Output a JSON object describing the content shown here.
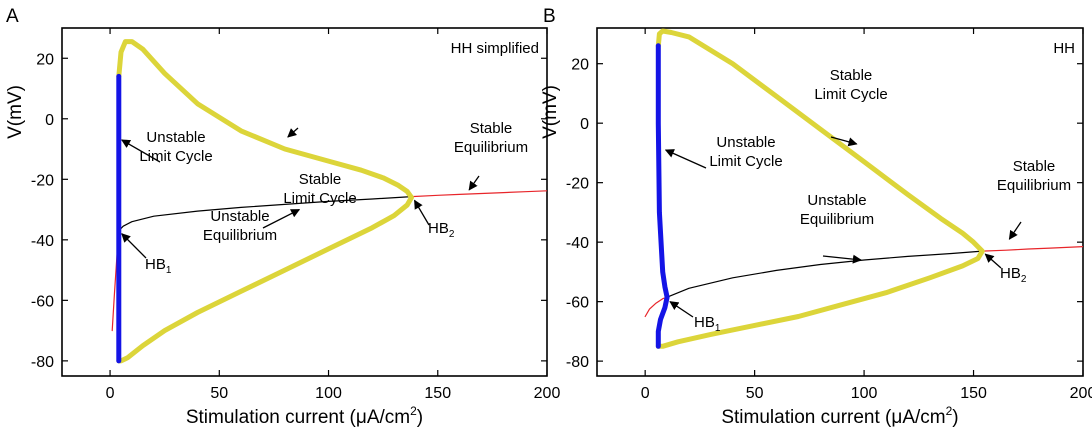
{
  "chart_data": [
    {
      "panel_label": "A",
      "type": "line",
      "model_label": "HH simplified",
      "xlabel_prefix": "Stimulation current (",
      "xlabel_unit": "μA/cm",
      "xlabel_sup": "2",
      "xlabel_suffix": ")",
      "ylabel": "V(mV)",
      "xlim": [
        -22,
        200
      ],
      "ylim": [
        -85,
        30
      ],
      "xticks": [
        0,
        50,
        100,
        150,
        200
      ],
      "yticks": [
        -80,
        -60,
        -40,
        -20,
        0,
        20
      ],
      "grid": false,
      "series": [
        {
          "key": "unstable_eq",
          "color": "#000000",
          "width": 1.2,
          "x": [
            4,
            6,
            10,
            20,
            40,
            60,
            80,
            100,
            120,
            138
          ],
          "y": [
            -37,
            -35.5,
            -34,
            -32.2,
            -30.5,
            -29.3,
            -28.3,
            -27.3,
            -26.5,
            -25.7
          ]
        },
        {
          "key": "stable_eq_low",
          "color": "#e8252a",
          "width": 1.2,
          "x": [
            1,
            2,
            3,
            4
          ],
          "y": [
            -70,
            -58,
            -47,
            -37
          ]
        },
        {
          "key": "stable_eq_high",
          "color": "#e8252a",
          "width": 1.2,
          "x": [
            138,
            150,
            160,
            170,
            180,
            190,
            200
          ],
          "y": [
            -25.7,
            -25.3,
            -25,
            -24.7,
            -24.4,
            -24.1,
            -23.8
          ]
        },
        {
          "key": "stable_lc",
          "color": "#dcd53a",
          "width": 5,
          "x": [
            4,
            5,
            7,
            10,
            15,
            25,
            40,
            60,
            80,
            100,
            115,
            125,
            132,
            136,
            138,
            136,
            130,
            120,
            100,
            80,
            60,
            40,
            25,
            15,
            8,
            5,
            4
          ],
          "y": [
            14,
            22,
            25.5,
            25.5,
            23,
            15,
            5,
            -4,
            -10,
            -14,
            -17,
            -19.5,
            -22,
            -24,
            -26,
            -28.5,
            -32,
            -36,
            -43,
            -50,
            -57,
            -64,
            -70,
            -75,
            -79,
            -80,
            -80
          ]
        },
        {
          "key": "unstable_lc",
          "color": "#1414e6",
          "width": 5,
          "x": [
            4,
            4,
            4
          ],
          "y": [
            14,
            -37,
            -80
          ]
        }
      ],
      "annotations": [
        {
          "lines": [
            "Stable",
            "Limit Cycle"
          ],
          "sub": "",
          "point": [
            80,
            -7
          ]
        },
        {
          "lines": [
            "Stable",
            "Equilibrium"
          ],
          "sub": "",
          "point": [
            163,
            -24.5
          ]
        },
        {
          "lines": [
            "Unstable",
            "Limit Cycle"
          ],
          "sub": "",
          "point": [
            4,
            -6
          ]
        },
        {
          "lines": [
            "Unstable",
            "Equilibrium"
          ],
          "sub": "",
          "point": [
            88,
            -29
          ]
        },
        {
          "lines": [
            "HB"
          ],
          "sub": "1",
          "point": [
            4,
            -37
          ]
        },
        {
          "lines": [
            "HB"
          ],
          "sub": "2",
          "point": [
            138,
            -26
          ]
        }
      ]
    },
    {
      "panel_label": "B",
      "type": "line",
      "model_label": "HH",
      "xlabel_prefix": "Stimulation current (",
      "xlabel_unit": "μA/cm",
      "xlabel_sup": "2",
      "xlabel_suffix": ")",
      "ylabel": "V(mV)",
      "xlim": [
        -22,
        200
      ],
      "ylim": [
        -85,
        32
      ],
      "xticks": [
        0,
        50,
        100,
        150,
        200
      ],
      "yticks": [
        -80,
        -60,
        -40,
        -20,
        0,
        20
      ],
      "grid": false,
      "series": [
        {
          "key": "unstable_eq",
          "color": "#000000",
          "width": 1.2,
          "x": [
            10,
            20,
            40,
            60,
            80,
            100,
            120,
            140,
            154
          ],
          "y": [
            -58.5,
            -55.5,
            -52,
            -49.5,
            -47.5,
            -46,
            -44.8,
            -43.8,
            -43
          ]
        },
        {
          "key": "stable_eq_low",
          "color": "#e8252a",
          "width": 1.2,
          "x": [
            0,
            2,
            5,
            8,
            10
          ],
          "y": [
            -65,
            -62.5,
            -60.5,
            -59,
            -58.5
          ]
        },
        {
          "key": "stable_eq_high",
          "color": "#e8252a",
          "width": 1.2,
          "x": [
            154,
            165,
            175,
            185,
            200
          ],
          "y": [
            -43,
            -42.7,
            -42.3,
            -42,
            -41.5
          ]
        },
        {
          "key": "stable_lc",
          "color": "#dcd53a",
          "width": 5,
          "x": [
            6,
            6.5,
            8,
            12,
            20,
            40,
            60,
            80,
            100,
            120,
            135,
            145,
            150,
            154,
            152,
            145,
            130,
            110,
            90,
            70,
            50,
            30,
            15,
            8,
            6
          ],
          "y": [
            26,
            30,
            31,
            30.5,
            29,
            20,
            9,
            -2,
            -13,
            -24,
            -32,
            -37,
            -40,
            -43,
            -45.5,
            -48,
            -52,
            -57,
            -61,
            -65,
            -68,
            -71,
            -73.5,
            -75,
            -75
          ]
        },
        {
          "key": "unstable_lc",
          "color": "#1414e6",
          "width": 5,
          "x": [
            6,
            6,
            6.5,
            8,
            9,
            10,
            9,
            7,
            6,
            6
          ],
          "y": [
            26,
            0,
            -30,
            -50,
            -55,
            -58.5,
            -62,
            -66,
            -70,
            -75
          ]
        }
      ],
      "annotations": [
        {
          "lines": [
            "Stable",
            "Limit Cycle"
          ],
          "sub": "",
          "point": [
            98,
            -8
          ]
        },
        {
          "lines": [
            "Stable",
            "Equilibrium"
          ],
          "sub": "",
          "point": [
            165,
            -40
          ]
        },
        {
          "lines": [
            "Unstable",
            "Limit Cycle"
          ],
          "sub": "",
          "point": [
            8,
            -8
          ]
        },
        {
          "lines": [
            "Unstable",
            "Equilibrium"
          ],
          "sub": "",
          "point": [
            100,
            -47
          ]
        },
        {
          "lines": [
            "HB"
          ],
          "sub": "1",
          "point": [
            10,
            -59
          ]
        },
        {
          "lines": [
            "HB"
          ],
          "sub": "2",
          "point": [
            154,
            -43
          ]
        }
      ]
    }
  ]
}
